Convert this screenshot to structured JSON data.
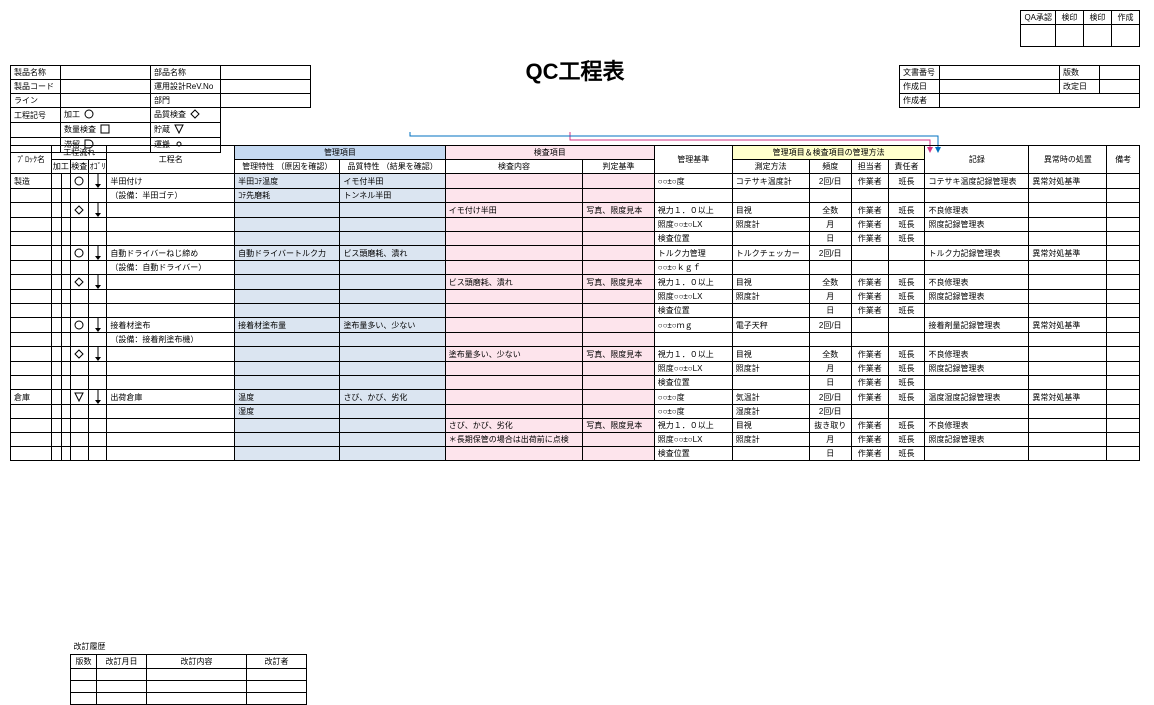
{
  "title": "QC工程表",
  "colors": {
    "header_blue": "#c5d9f1",
    "header_pink": "#fde4ec",
    "header_yellow": "#ffffcc",
    "cell_blue": "#dbe5f1",
    "cell_pink": "#fde4ec",
    "arrow_blue": "#0070c0",
    "arrow_pink": "#d63384"
  },
  "approval": {
    "cols": [
      "QA承認",
      "検印",
      "検印",
      "作成"
    ]
  },
  "docinfo": {
    "rows": [
      {
        "l": "文書番号",
        "v": "",
        "l2": "版数",
        "v2": ""
      },
      {
        "l": "作成日",
        "v": "",
        "l2": "改定日",
        "v2": ""
      },
      {
        "l": "作成者",
        "v": "",
        "l2": "",
        "v2": ""
      }
    ]
  },
  "prodinfo": {
    "rows": [
      [
        "製品名称",
        "",
        "部品名称",
        ""
      ],
      [
        "製品コード",
        "",
        "運用設計ReV.No",
        ""
      ],
      [
        "ライン",
        "",
        "部門",
        ""
      ]
    ],
    "legend": [
      {
        "k": "工程記号",
        "a": "加工",
        "asym": "circ",
        "b": "品質検査",
        "bsym": "diamond"
      },
      {
        "k": "",
        "a": "数量検査",
        "asym": "square",
        "b": "貯蔵",
        "bsym": "tri"
      },
      {
        "k": "",
        "a": "滞留",
        "asym": "dee",
        "b": "運搬",
        "bsym": "smallcirc"
      }
    ]
  },
  "main": {
    "header_groups": {
      "flow": "工程流れ",
      "kanri": "管理項目",
      "kensa": "検査項目",
      "houhou": "管理項目＆検査項目の管理方法"
    },
    "header": {
      "block": "ﾌﾟﾛｯｸ名",
      "f1": "加工",
      "f2": "検査",
      "f3": "ｵｺﾞﾘ",
      "name": "工程名",
      "kanri1": "管理特性\n（原因を確認）",
      "kanri2": "品質特性\n（結果を確認）",
      "kensa1": "検査内容",
      "kensa2": "判定基準",
      "kijun": "管理基準",
      "sokutei": "測定方法",
      "hindo": "頻度",
      "tantou": "担当者",
      "sekinin": "責任者",
      "kiroku": "記録",
      "ijou": "異常時の処置",
      "bikou": "備考"
    },
    "col_w": {
      "block": 38,
      "flow": 12,
      "name": 118,
      "kanri": 80,
      "kensa1": 110,
      "kensa2": 66,
      "kijun": 72,
      "sokutei": 66,
      "hindo": 30,
      "tantou": 34,
      "sekinin": 34,
      "kiroku": 96,
      "ijou": 72,
      "bikou": 30
    },
    "rows": [
      {
        "block": "製造",
        "sym": "circ",
        "name": "半田付け",
        "kanri1": "半田ｺﾃ温度",
        "kanri2": "イモ付半田",
        "kijun": "○○±○度",
        "sokutei": "コテサキ温度計",
        "hindo": "2回/日",
        "tantou": "作業者",
        "sekinin": "班長",
        "kiroku": "コテサキ温度記録管理表",
        "ijou": "異常対処基準"
      },
      {
        "name": "（設備：半田ゴテ）",
        "kanri1": "ｺﾃ先磨耗",
        "kanri2": "トンネル半田"
      },
      {
        "sym": "diamond",
        "kensa1": "イモ付け半田",
        "kensa2": "写真、限度見本",
        "kijun": "視力１．０以上",
        "sokutei": "目視",
        "hindo": "全数",
        "tantou": "作業者",
        "sekinin": "班長",
        "kiroku": "不良修理表"
      },
      {
        "kijun": "照度○○±○LX",
        "sokutei": "照度計",
        "hindo": "月",
        "tantou": "作業者",
        "sekinin": "班長",
        "kiroku": "照度記録管理表"
      },
      {
        "kijun": "検査位置",
        "hindo": "日",
        "tantou": "作業者",
        "sekinin": "班長"
      },
      {
        "sym": "circ",
        "name": "自動ドライバーねじ締め",
        "kanri1": "自動ドライバートルク力",
        "kanri2": "ビス頭磨耗、潰れ",
        "kijun": "トルク力管理",
        "sokutei": "トルクチェッカー",
        "hindo": "2回/日",
        "kiroku": "トルク力記録管理表",
        "ijou": "異常対処基準"
      },
      {
        "name": "（設備：自動ドライバー）",
        "kijun": "○○±○ｋｇｆ"
      },
      {
        "sym": "diamond",
        "kensa1": "ビス頭磨耗、潰れ",
        "kensa2": "写真、限度見本",
        "kijun": "視力１．０以上",
        "sokutei": "目視",
        "hindo": "全数",
        "tantou": "作業者",
        "sekinin": "班長",
        "kiroku": "不良修理表"
      },
      {
        "kijun": "照度○○±○LX",
        "sokutei": "照度計",
        "hindo": "月",
        "tantou": "作業者",
        "sekinin": "班長",
        "kiroku": "照度記録管理表"
      },
      {
        "kijun": "検査位置",
        "hindo": "日",
        "tantou": "作業者",
        "sekinin": "班長"
      },
      {
        "sym": "circ",
        "name": "接着材塗布",
        "kanri1": "接着材塗布量",
        "kanri2": "塗布量多い、少ない",
        "kijun": "○○±○ｍｇ",
        "sokutei": "電子天秤",
        "hindo": "2回/日",
        "kiroku": "接着剤量記録管理表",
        "ijou": "異常対処基準"
      },
      {
        "name": "（設備：接着剤塗布機）"
      },
      {
        "sym": "diamond",
        "kensa1": "塗布量多い、少ない",
        "kensa2": "写真、限度見本",
        "kijun": "視力１．０以上",
        "sokutei": "目視",
        "hindo": "全数",
        "tantou": "作業者",
        "sekinin": "班長",
        "kiroku": "不良修理表"
      },
      {
        "kijun": "照度○○±○LX",
        "sokutei": "照度計",
        "hindo": "月",
        "tantou": "作業者",
        "sekinin": "班長",
        "kiroku": "照度記録管理表"
      },
      {
        "kijun": "検査位置",
        "hindo": "日",
        "tantou": "作業者",
        "sekinin": "班長"
      },
      {
        "block": "倉庫",
        "sym": "tri",
        "name": "出荷倉庫",
        "kanri1": "温度",
        "kanri2": "さび、かび、劣化",
        "kijun": "○○±○度",
        "sokutei": "気温計",
        "hindo": "2回/日",
        "tantou": "作業者",
        "sekinin": "班長",
        "kiroku": "温度湿度記録管理表",
        "ijou": "異常対処基準"
      },
      {
        "kanri1": "湿度",
        "kijun": "○○±○度",
        "sokutei": "湿度計",
        "hindo": "2回/日"
      },
      {
        "kensa1": "さび、かび、劣化",
        "kensa2": "写真、限度見本",
        "kijun": "視力１．０以上",
        "sokutei": "目視",
        "hindo": "抜き取り",
        "tantou": "作業者",
        "sekinin": "班長",
        "kiroku": "不良修理表"
      },
      {
        "kensa1": "＊長期保管の場合は出荷前に点検",
        "kijun": "照度○○±○LX",
        "sokutei": "照度計",
        "hindo": "月",
        "tantou": "作業者",
        "sekinin": "班長",
        "kiroku": "照度記録管理表"
      },
      {
        "kijun": "検査位置",
        "hindo": "日",
        "tantou": "作業者",
        "sekinin": "班長"
      }
    ]
  },
  "revhist": {
    "title": "改訂履歴",
    "cols": [
      "版数",
      "改訂月日",
      "改訂内容",
      "改訂者"
    ]
  }
}
